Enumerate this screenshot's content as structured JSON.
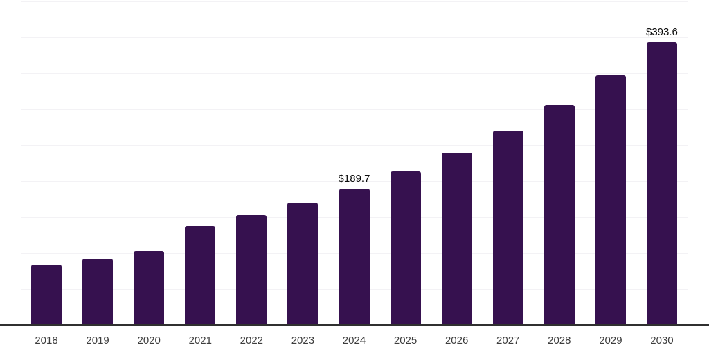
{
  "chart_data": {
    "type": "bar",
    "title": "",
    "xlabel": "",
    "ylabel": "",
    "categories": [
      "2018",
      "2019",
      "2020",
      "2021",
      "2022",
      "2023",
      "2024",
      "2025",
      "2026",
      "2027",
      "2028",
      "2029",
      "2030"
    ],
    "values": [
      83.7,
      92.3,
      102.9,
      137.5,
      152.9,
      170.2,
      189.7,
      213.7,
      239.4,
      270.2,
      305.8,
      347.1,
      393.6
    ],
    "data_labels": [
      "",
      "",
      "",
      "",
      "",
      "",
      "$189.7",
      "",
      "",
      "",
      "",
      "",
      "$393.6"
    ],
    "value_unit_prefix": "$",
    "ylim": [
      0,
      450
    ],
    "gridline_step": 50,
    "grid": true,
    "legend": false,
    "y_tick_labels_visible": false
  },
  "colors": {
    "background": "#ffffff",
    "bar": "#36114f",
    "gridline": "#f3f2f5",
    "axis_line": "#303030",
    "tick_label": "#3d3d3d",
    "data_label": "#0d0d0d"
  }
}
